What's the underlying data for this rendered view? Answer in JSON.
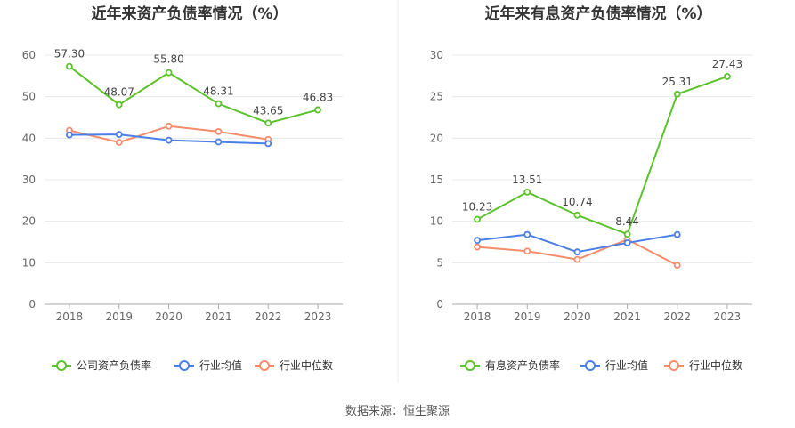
{
  "source": "数据来源：恒生聚源",
  "colors": {
    "primary": "#5cc22b",
    "avg": "#4a7fe6",
    "median": "#f58d6c"
  },
  "chart_data": [
    {
      "type": "line",
      "title": "近年来资产负债率情况（%）",
      "categories": [
        "2018",
        "2019",
        "2020",
        "2021",
        "2022",
        "2023"
      ],
      "ylim": [
        0,
        60
      ],
      "yticks": [
        "0",
        "10",
        "20",
        "30",
        "40",
        "50",
        "60"
      ],
      "grid": true,
      "legend_placement": "bottom",
      "series": [
        {
          "name": "公司资产负债率",
          "values": [
            57.3,
            48.07,
            55.8,
            48.31,
            43.65,
            46.83
          ],
          "labels": [
            "57.30",
            "48.07",
            "55.80",
            "48.31",
            "43.65",
            "46.83"
          ]
        },
        {
          "name": "行业均值",
          "values": [
            40.8,
            40.9,
            39.5,
            39.1,
            38.7,
            null
          ]
        },
        {
          "name": "行业中位数",
          "values": [
            41.9,
            39.0,
            42.9,
            41.6,
            39.7,
            null
          ]
        }
      ]
    },
    {
      "type": "line",
      "title": "近年来有息资产负债率情况（%）",
      "categories": [
        "2018",
        "2019",
        "2020",
        "2021",
        "2022",
        "2023"
      ],
      "ylim": [
        0,
        30
      ],
      "yticks": [
        "0",
        "5",
        "10",
        "15",
        "20",
        "25",
        "30"
      ],
      "grid": true,
      "legend_placement": "bottom",
      "series": [
        {
          "name": "有息资产负债率",
          "values": [
            10.23,
            13.51,
            10.74,
            8.44,
            25.31,
            27.43
          ],
          "labels": [
            "10.23",
            "13.51",
            "10.74",
            "8.44",
            "25.31",
            "27.43"
          ]
        },
        {
          "name": "行业均值",
          "values": [
            7.7,
            8.4,
            6.3,
            7.4,
            8.4,
            null
          ]
        },
        {
          "name": "行业中位数",
          "values": [
            6.9,
            6.4,
            5.4,
            7.8,
            4.7,
            null
          ]
        }
      ]
    }
  ]
}
